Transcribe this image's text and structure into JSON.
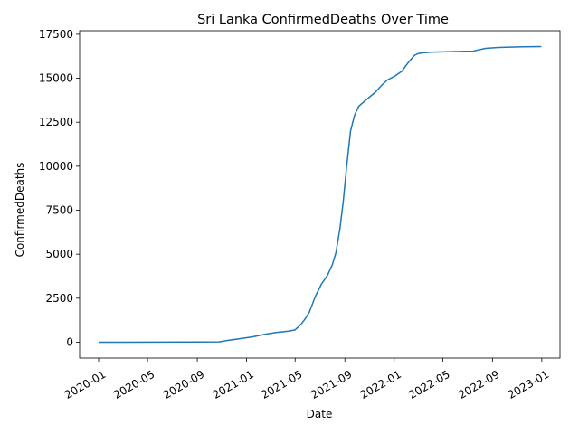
{
  "chart_data": {
    "type": "line",
    "title": "Sri Lanka  ConfirmedDeaths Over Time",
    "xlabel": "Date",
    "ylabel": "ConfirmedDeaths",
    "grid": false,
    "legend": "none",
    "xlim": [
      "2019-11-15",
      "2023-02-15"
    ],
    "ylim": [
      -900,
      17700
    ],
    "x_ticks": [
      "2020-01",
      "2020-05",
      "2020-09",
      "2021-01",
      "2021-05",
      "2021-09",
      "2022-01",
      "2022-05",
      "2022-09",
      "2023-01"
    ],
    "y_ticks": [
      0,
      2500,
      5000,
      7500,
      10000,
      12500,
      15000,
      17500
    ],
    "line_color": "#1f77b4",
    "series": [
      {
        "x": [
          "2020-01-01",
          "2020-03-01",
          "2020-06-01",
          "2020-09-01",
          "2020-10-25",
          "2020-11-15",
          "2020-12-15",
          "2021-01-15",
          "2021-02-15",
          "2021-03-15",
          "2021-04-15",
          "2021-05-01",
          "2021-05-15",
          "2021-05-25",
          "2021-06-05",
          "2021-06-20",
          "2021-07-05",
          "2021-07-20",
          "2021-08-01",
          "2021-08-10",
          "2021-08-20",
          "2021-08-28",
          "2021-09-05",
          "2021-09-15",
          "2021-09-25",
          "2021-10-05",
          "2021-10-20",
          "2021-11-15",
          "2021-12-01",
          "2021-12-15",
          "2022-01-01",
          "2022-01-20",
          "2022-02-05",
          "2022-02-20",
          "2022-03-01",
          "2022-03-15",
          "2022-04-01",
          "2022-05-01",
          "2022-06-01",
          "2022-07-15",
          "2022-08-15",
          "2022-09-15",
          "2022-10-15",
          "2022-11-15",
          "2022-12-31"
        ],
        "y": [
          0,
          0,
          5,
          10,
          20,
          100,
          200,
          300,
          450,
          550,
          630,
          700,
          1000,
          1300,
          1700,
          2600,
          3300,
          3800,
          4400,
          5100,
          6500,
          8000,
          9900,
          12000,
          12900,
          13400,
          13700,
          14200,
          14600,
          14900,
          15100,
          15400,
          15900,
          16300,
          16400,
          16450,
          16480,
          16500,
          16520,
          16540,
          16700,
          16750,
          16770,
          16790,
          16800
        ]
      }
    ]
  }
}
